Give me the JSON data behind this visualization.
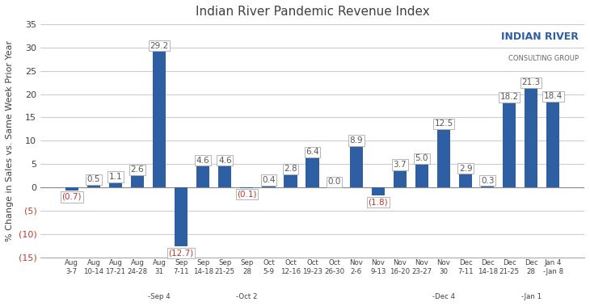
{
  "title": "Indian River Pandemic Revenue Index",
  "ylabel": "% Change in Sales vs. Same Week Prior Year",
  "categories": [
    "Aug\n3-7",
    "Aug\n10-14",
    "Aug\n17-21",
    "Aug\n24-28",
    "Aug\n31",
    "Sep\n7-11",
    "Sep\n14-18",
    "Sep\n21-25",
    "Sep\n28",
    "Oct\n5-9",
    "Oct\n12-16",
    "Oct\n19-23",
    "Oct\n26-30",
    "Nov\n2-6",
    "Nov\n9-13",
    "Nov\n16-20",
    "Nov\n23-27",
    "Nov\n30",
    "Dec\n7-11",
    "Dec\n14-18",
    "Dec\n21-25",
    "Dec\n28",
    "Jan 4\n-Jan 8"
  ],
  "sublabels": [
    "",
    "",
    "",
    "",
    "-Sep 4",
    "",
    "",
    "",
    "-Oct 2",
    "",
    "",
    "",
    "",
    "",
    "",
    "",
    "",
    "-Dec 4",
    "",
    "",
    "",
    "-Jan 1",
    ""
  ],
  "values": [
    -0.7,
    0.5,
    1.1,
    2.6,
    29.2,
    -12.7,
    4.6,
    4.6,
    -0.1,
    0.4,
    2.8,
    6.4,
    0.0,
    8.9,
    -1.8,
    3.7,
    5.0,
    12.5,
    2.9,
    0.3,
    18.2,
    21.3,
    18.4
  ],
  "bar_color": "#2E5FA3",
  "neg_label_color": "#C0392B",
  "pos_label_color": "#595959",
  "ylim": [
    -15,
    35
  ],
  "yticks": [
    -15,
    -10,
    -5,
    0,
    5,
    10,
    15,
    20,
    25,
    30,
    35
  ],
  "ytick_labels_neg": [
    "(15)",
    "(10)",
    "(5)"
  ],
  "background_color": "#FFFFFF",
  "grid_color": "#CCCCCC",
  "title_fontsize": 11,
  "label_fontsize": 7.5,
  "axis_label_fontsize": 8
}
